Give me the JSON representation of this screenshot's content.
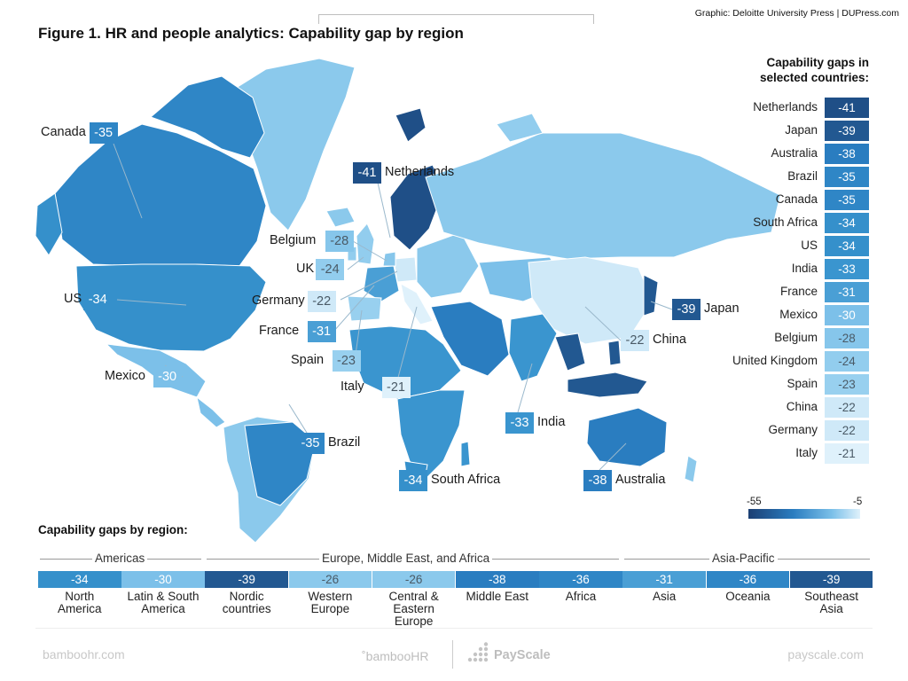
{
  "credit": "Graphic: Deloitte University Press  |  DUPress.com",
  "title": "Figure 1. HR and people analytics: Capability gap by region",
  "legend": {
    "title_line1": "Capability gaps in",
    "title_line2": "selected countries:"
  },
  "scale": {
    "min_label": "-55",
    "max_label": "-5"
  },
  "colors": {
    "c55": "#1c3f73",
    "c41": "#1f4f87",
    "c39": "#225891",
    "c38": "#2a7dc0",
    "c35": "#2f86c6",
    "c34": "#3590cb",
    "c33": "#3a95cf",
    "c31": "#4a9fd5",
    "c30": "#7cc0e9",
    "c28": "#86c6eb",
    "c26": "#8bc9ec",
    "c24": "#92cdee",
    "c23": "#98d0ef",
    "c22": "#cfe9f8",
    "c21": "#dff1fb",
    "ocean": "#ffffff"
  },
  "chart_data": {
    "type": "choropleth",
    "title": "Figure 1. HR and people analytics: Capability gap by region",
    "value_range": [
      -55,
      -5
    ],
    "countries": [
      {
        "name": "Netherlands",
        "value": -41,
        "label": "-41"
      },
      {
        "name": "Japan",
        "value": -39,
        "label": "-39"
      },
      {
        "name": "Australia",
        "value": -38,
        "label": "-38"
      },
      {
        "name": "Brazil",
        "value": -35,
        "label": "-35"
      },
      {
        "name": "Canada",
        "value": -35,
        "label": "-35"
      },
      {
        "name": "South Africa",
        "value": -34,
        "label": "-34"
      },
      {
        "name": "US",
        "value": -34,
        "label": "-34"
      },
      {
        "name": "India",
        "value": -33,
        "label": "-33"
      },
      {
        "name": "France",
        "value": -31,
        "label": "-31"
      },
      {
        "name": "Mexico",
        "value": -30,
        "label": "-30"
      },
      {
        "name": "Belgium",
        "value": -28,
        "label": "-28"
      },
      {
        "name": "United Kingdom",
        "value": -24,
        "label": "-24"
      },
      {
        "name": "Spain",
        "value": -23,
        "label": "-23"
      },
      {
        "name": "China",
        "value": -22,
        "label": "-22"
      },
      {
        "name": "Germany",
        "value": -22,
        "label": "-22"
      },
      {
        "name": "Italy",
        "value": -21,
        "label": "-21"
      }
    ],
    "map_labels": [
      {
        "id": "canada",
        "name": "Canada",
        "value": -35,
        "label": "-35",
        "side": "left"
      },
      {
        "id": "netherlands",
        "name": "Netherlands",
        "value": -41,
        "label": "-41",
        "side": "right"
      },
      {
        "id": "belgium",
        "name": "Belgium",
        "value": -28,
        "label": "-28",
        "side": "left"
      },
      {
        "id": "uk",
        "name": "UK",
        "value": -24,
        "label": "-24",
        "side": "left"
      },
      {
        "id": "germany",
        "name": "Germany",
        "value": -22,
        "label": "-22",
        "side": "left"
      },
      {
        "id": "us",
        "name": "US",
        "value": -34,
        "label": "-34",
        "side": "left"
      },
      {
        "id": "france",
        "name": "France",
        "value": -31,
        "label": "-31",
        "side": "left"
      },
      {
        "id": "spain",
        "name": "Spain",
        "value": -23,
        "label": "-23",
        "side": "left"
      },
      {
        "id": "italy",
        "name": "Italy",
        "value": -21,
        "label": "-21",
        "side": "left"
      },
      {
        "id": "mexico",
        "name": "Mexico",
        "value": -30,
        "label": "-30",
        "side": "left"
      },
      {
        "id": "brazil",
        "name": "Brazil",
        "value": -35,
        "label": "-35",
        "side": "right"
      },
      {
        "id": "india",
        "name": "India",
        "value": -33,
        "label": "-33",
        "side": "right"
      },
      {
        "id": "south-africa",
        "name": "South Africa",
        "value": -34,
        "label": "-34",
        "side": "right"
      },
      {
        "id": "australia",
        "name": "Australia",
        "value": -38,
        "label": "-38",
        "side": "right"
      },
      {
        "id": "japan",
        "name": "Japan",
        "value": -39,
        "label": "-39",
        "side": "right"
      },
      {
        "id": "china",
        "name": "China",
        "value": -22,
        "label": "-22",
        "side": "right"
      }
    ],
    "regions_title": "Capability gaps by region:",
    "region_groups": [
      "Americas",
      "Europe, Middle East, and Africa",
      "Asia-Pacific"
    ],
    "regions": [
      {
        "name": "North America",
        "line1": "North",
        "line2": "America",
        "value": -34,
        "label": "-34"
      },
      {
        "name": "Latin & South America",
        "line1": "Latin & South",
        "line2": "America",
        "value": -30,
        "label": "-30"
      },
      {
        "name": "Nordic countries",
        "line1": "Nordic",
        "line2": "countries",
        "value": -39,
        "label": "-39"
      },
      {
        "name": "Western Europe",
        "line1": "Western",
        "line2": "Europe",
        "value": -26,
        "label": "-26"
      },
      {
        "name": "Central & Eastern Europe",
        "line1": "Central &",
        "line2": "Eastern Europe",
        "value": -26,
        "label": "-26"
      },
      {
        "name": "Middle East",
        "line1": "Middle East",
        "line2": "",
        "value": -38,
        "label": "-38"
      },
      {
        "name": "Africa",
        "line1": "Africa",
        "line2": "",
        "value": -36,
        "label": "-36"
      },
      {
        "name": "Asia",
        "line1": "Asia",
        "line2": "",
        "value": -31,
        "label": "-31"
      },
      {
        "name": "Oceania",
        "line1": "Oceania",
        "line2": "",
        "value": -36,
        "label": "-36"
      },
      {
        "name": "Southeast Asia",
        "line1": "Southeast",
        "line2": "Asia",
        "value": -39,
        "label": "-39"
      }
    ]
  },
  "footer": {
    "left": "bamboohr.com",
    "mid_left": "˚bambooHR",
    "mid_right": "PayScale",
    "right": "payscale.com"
  }
}
